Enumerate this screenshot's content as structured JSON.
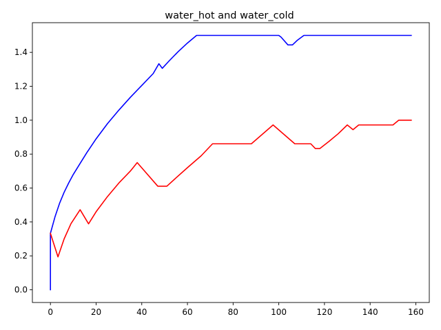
{
  "chart_data": {
    "type": "line",
    "title": "water_hot and water_cold",
    "xlabel": "",
    "ylabel": "",
    "xlim": [
      -7.9,
      165.9
    ],
    "ylim": [
      -0.075,
      1.575
    ],
    "xticks": [
      0,
      20,
      40,
      60,
      80,
      100,
      120,
      140,
      160
    ],
    "yticks": [
      0.0,
      0.2,
      0.4,
      0.6,
      0.8,
      1.0,
      1.2,
      1.4
    ],
    "ytick_labels": [
      "0.0",
      "0.2",
      "0.4",
      "0.6",
      "0.8",
      "1.0",
      "1.2",
      "1.4"
    ],
    "grid": false,
    "legend": false,
    "series": [
      {
        "color": "#0000ff",
        "x": [
          0,
          0,
          2,
          4,
          6,
          8,
          10,
          13,
          16,
          20,
          25,
          30,
          35,
          40,
          45,
          47.5,
          49,
          52,
          56,
          60,
          64,
          70,
          80,
          90,
          100,
          101,
          104,
          106,
          108,
          111,
          120,
          130,
          140,
          150,
          158
        ],
        "y": [
          0,
          0.333,
          0.43,
          0.51,
          0.575,
          0.63,
          0.68,
          0.745,
          0.81,
          0.89,
          0.98,
          1.06,
          1.135,
          1.205,
          1.275,
          1.333,
          1.306,
          1.35,
          1.405,
          1.455,
          1.5,
          1.5,
          1.5,
          1.5,
          1.5,
          1.49,
          1.444,
          1.444,
          1.47,
          1.5,
          1.5,
          1.5,
          1.5,
          1.5,
          1.5
        ]
      },
      {
        "color": "#ff0000",
        "x": [
          0,
          3.3,
          6,
          9,
          13,
          16.7,
          20,
          25,
          30,
          35,
          38,
          47,
          51,
          55,
          60,
          66,
          71,
          80,
          88,
          97.5,
          107,
          114,
          116,
          118,
          122,
          126,
          130,
          132.5,
          135,
          140,
          145,
          150,
          152.5,
          158
        ],
        "y": [
          0.333,
          0.194,
          0.3,
          0.39,
          0.472,
          0.389,
          0.46,
          0.55,
          0.63,
          0.7,
          0.75,
          0.611,
          0.611,
          0.66,
          0.72,
          0.79,
          0.861,
          0.861,
          0.861,
          0.972,
          0.861,
          0.861,
          0.833,
          0.833,
          0.875,
          0.92,
          0.972,
          0.944,
          0.972,
          0.972,
          0.972,
          0.972,
          1.0,
          1.0
        ]
      }
    ]
  }
}
